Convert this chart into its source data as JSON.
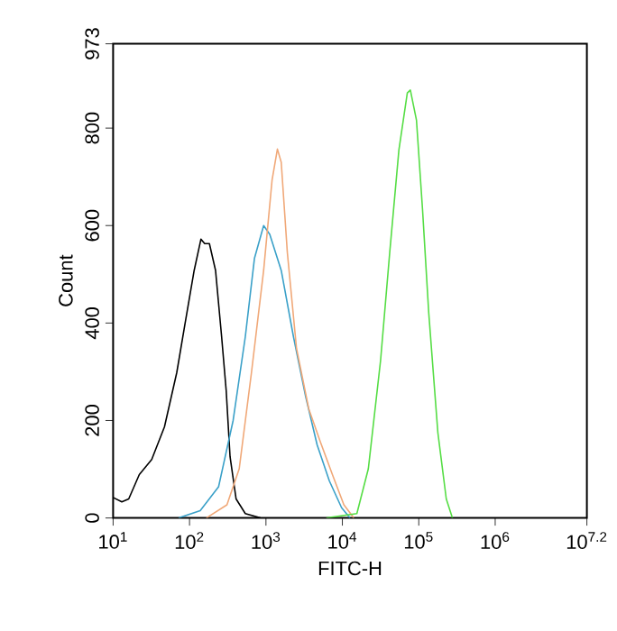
{
  "chart_data": {
    "type": "line",
    "xlabel": "FITC-H",
    "ylabel": "Count",
    "log": "x",
    "grid": false,
    "marker": "none",
    "xlim": [
      10,
      15848932
    ],
    "ylim": [
      0,
      973
    ],
    "xticks": [
      {
        "value": 10,
        "label": "10$^{1}$"
      },
      {
        "value": 100,
        "label": "10$^{2}$"
      },
      {
        "value": 1000,
        "label": "10$^{3}$"
      },
      {
        "value": 10000,
        "label": "10$^{4}$"
      },
      {
        "value": 100000,
        "label": "10$^{5}$"
      },
      {
        "value": 1000000,
        "label": "10$^{6}$"
      },
      {
        "value": 15848932,
        "label": "10$^{7.2}$"
      }
    ],
    "yticks": [
      0,
      200,
      400,
      600,
      800,
      973
    ],
    "series": [
      {
        "color": "#000000",
        "x": [
          10,
          13,
          16,
          22,
          32,
          47,
          68,
          87,
          115,
          141,
          158,
          182,
          219,
          263,
          302,
          339,
          407,
          537,
          851
        ],
        "values": [
          42,
          33,
          39,
          89,
          120,
          187,
          298,
          397,
          508,
          572,
          563,
          563,
          508,
          372,
          261,
          126,
          39,
          9,
          0
        ]
      },
      {
        "color": "#3aa0c8",
        "x": [
          72,
          138,
          240,
          372,
          537,
          708,
          933,
          1122,
          1585,
          2291,
          3311,
          4677,
          6761,
          9772,
          12589
        ],
        "values": [
          0,
          15,
          64,
          200,
          372,
          533,
          600,
          582,
          508,
          372,
          249,
          150,
          76,
          21,
          0
        ]
      },
      {
        "color": "#f0a878",
        "x": [
          166,
          309,
          447,
          646,
          933,
          1202,
          1413,
          1585,
          1905,
          2512,
          3631,
          5129,
          7413,
          10471,
          14125
        ],
        "values": [
          0,
          27,
          101,
          298,
          508,
          693,
          757,
          730,
          545,
          348,
          224,
          157,
          89,
          27,
          0
        ]
      },
      {
        "color": "#55dd44",
        "x": [
          6166,
          15488,
          21878,
          31623,
          41687,
          54954,
          70795,
          77625,
          93325,
          112202,
          134896,
          177828,
          229087,
          275423
        ],
        "values": [
          0,
          9,
          101,
          323,
          545,
          755,
          872,
          878,
          816,
          631,
          422,
          175,
          39,
          0
        ]
      }
    ]
  }
}
